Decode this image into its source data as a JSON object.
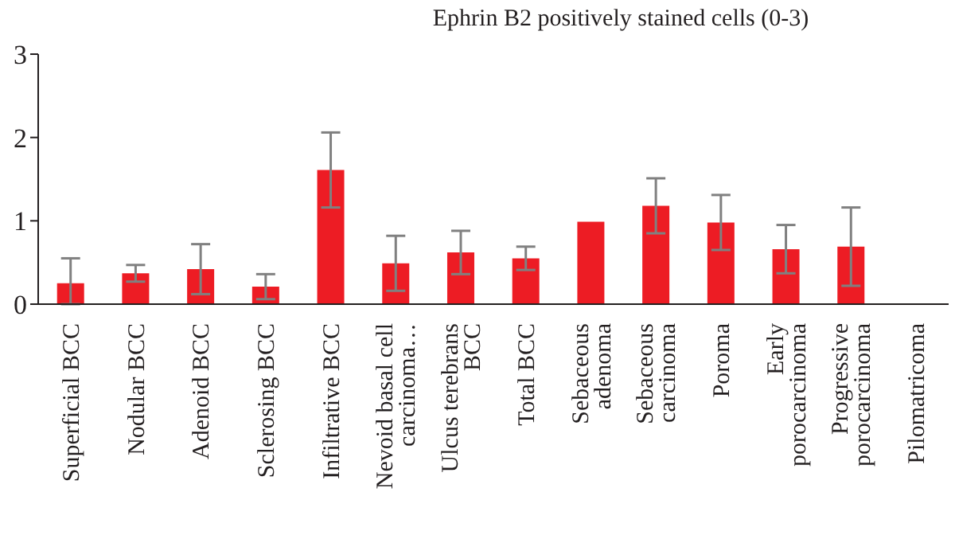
{
  "chart_data": {
    "type": "bar",
    "title": "Ephrin B2 positively stained cells (0-3)",
    "categories": [
      "Superficial BCC",
      "Nodular BCC",
      "Adenoid BCC",
      "Sclerosing BCC",
      "Infiltrative BCC",
      "Nevoid basal cell\ncarcinoma…",
      "Ulcus terebrans\nBCC",
      "Total BCC",
      "Sebaceous\nadenoma",
      "Sebaceous\ncarcinoma",
      "Poroma",
      "Early\nporocarcinoma",
      "Progressive\nporocarcinoma",
      "Pilomatricoma"
    ],
    "values": [
      0.25,
      0.37,
      0.42,
      0.21,
      1.61,
      0.49,
      0.62,
      0.55,
      0.99,
      1.18,
      0.98,
      0.66,
      0.69,
      0
    ],
    "errors": [
      [
        0,
        0.55
      ],
      0.1,
      0.3,
      0.15,
      0.45,
      0.33,
      0.26,
      0.14,
      0,
      0.33,
      0.33,
      0.29,
      0.47,
      null
    ],
    "color": "#ed1c24",
    "ylim": [
      0,
      3
    ],
    "yticks": [
      0,
      1,
      2,
      3
    ]
  }
}
